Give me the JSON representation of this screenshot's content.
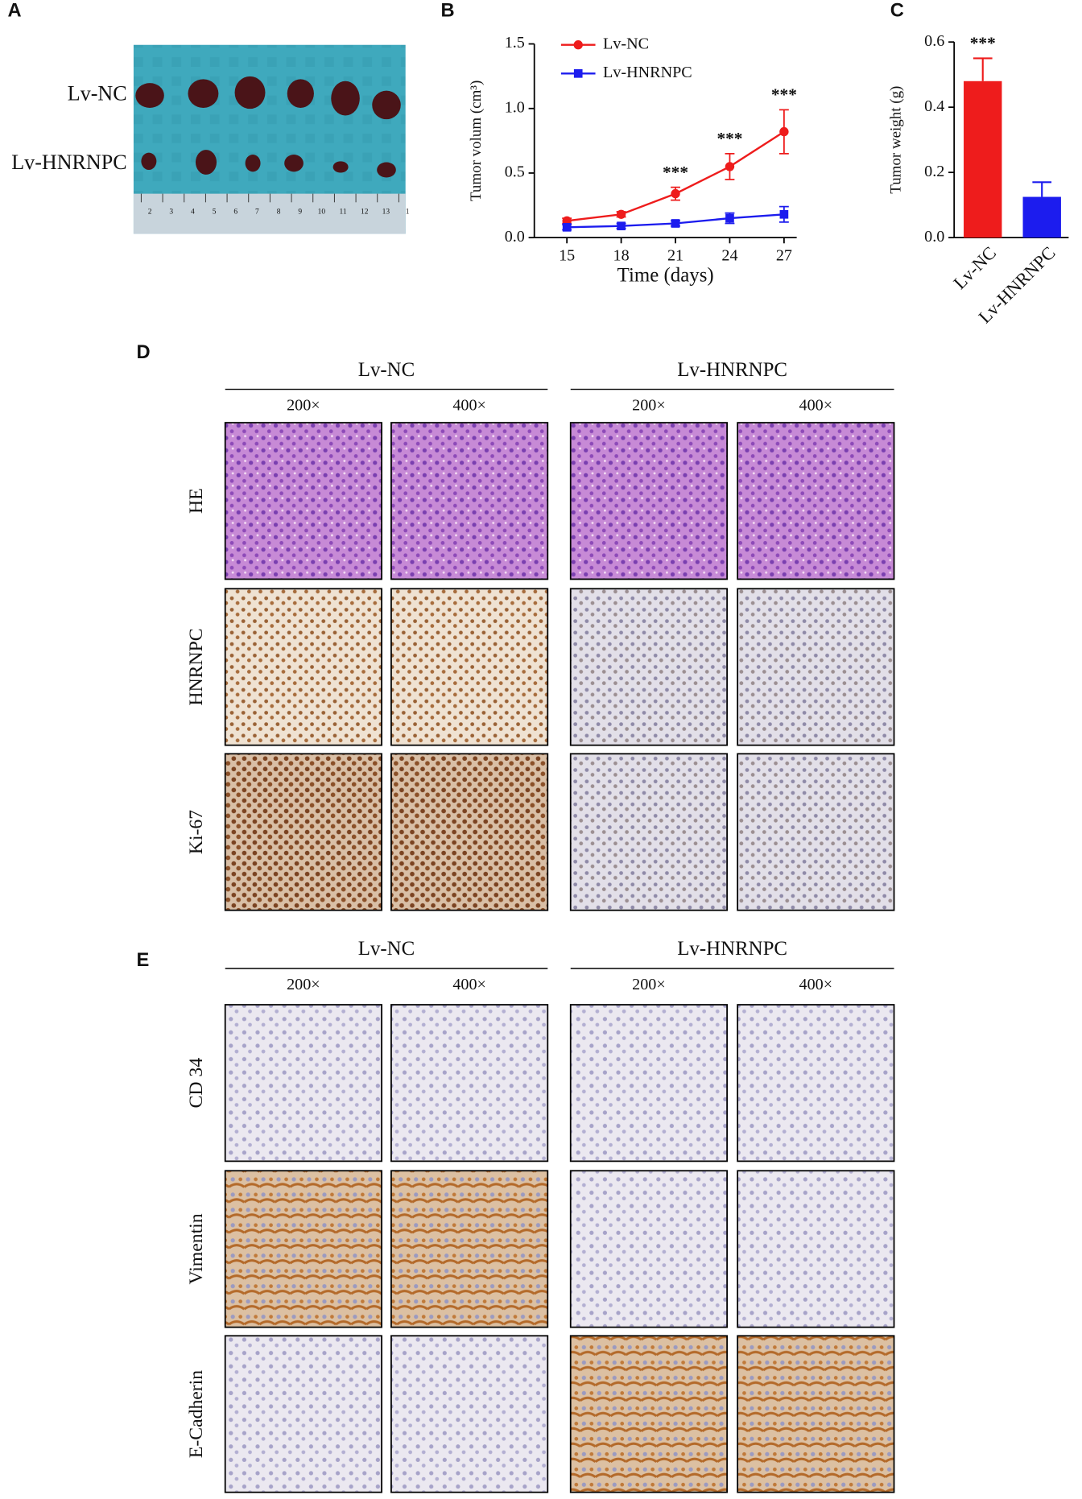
{
  "panel_labels": [
    "A",
    "B",
    "C",
    "D",
    "E"
  ],
  "photo": {
    "row_labels": [
      "Lv-NC",
      "Lv-HNRNPC"
    ],
    "ruler_labels": [
      "2",
      "3",
      "4",
      "5",
      "6",
      "7",
      "8",
      "9",
      "10",
      "11",
      "12",
      "13",
      "1"
    ]
  },
  "chart_data": [
    {
      "type": "line",
      "x": [
        15,
        18,
        21,
        24,
        27
      ],
      "xlim": [
        13.2,
        27.7
      ],
      "xticks": [
        15,
        18,
        21,
        24,
        27
      ],
      "ylim": [
        0,
        1.5
      ],
      "yticks": [
        {
          "value": 0,
          "label": "0.0"
        },
        {
          "value": 0.5,
          "label": "0.5"
        },
        {
          "value": 1,
          "label": "1.0"
        },
        {
          "value": 1.5,
          "label": "1.5"
        }
      ],
      "x_label": "Time (days)",
      "y_label": "Tumor volum (cm³)",
      "legend": "upper left",
      "series": [
        {
          "name": "Lv-NC",
          "color": "#ee1c1c",
          "marker": "circle",
          "values": [
            0.13,
            0.18,
            0.34,
            0.55,
            0.82
          ],
          "errors": [
            0.02,
            0.02,
            0.05,
            0.1,
            0.17
          ]
        },
        {
          "name": "Lv-HNRNPC",
          "color": "#1c1cee",
          "marker": "square",
          "values": [
            0.08,
            0.09,
            0.11,
            0.15,
            0.18
          ],
          "errors": [
            0.02,
            0.02,
            0.02,
            0.04,
            0.06
          ]
        }
      ],
      "annotations": [
        {
          "text": "***",
          "x": 21
        },
        {
          "text": "***",
          "x": 24
        },
        {
          "text": "***",
          "x": 27
        }
      ]
    },
    {
      "type": "bar",
      "categories": [
        "Lv-NC",
        "Lv-HNRNPC"
      ],
      "values": [
        0.48,
        0.125
      ],
      "errors": [
        0.07,
        0.045
      ],
      "colors": [
        "#ee1c1c",
        "#1c1cee"
      ],
      "ylim": [
        0,
        0.6
      ],
      "yticks": [
        {
          "value": 0,
          "label": "0.0"
        },
        {
          "value": 0.2,
          "label": "0.2"
        },
        {
          "value": 0.4,
          "label": "0.4"
        },
        {
          "value": 0.6,
          "label": "0.6"
        }
      ],
      "y_label": "Tumor weight (g)",
      "annotations": [
        {
          "text": "***",
          "x": "Lv-NC"
        }
      ]
    }
  ],
  "histology": [
    {
      "groups": [
        "Lv-NC",
        "Lv-HNRNPC"
      ],
      "magnifications": [
        "200×",
        "400×",
        "200×",
        "400×"
      ],
      "rows": [
        "HE",
        "HNRNPC",
        "Ki-67"
      ]
    },
    {
      "groups": [
        "Lv-NC",
        "Lv-HNRNPC"
      ],
      "magnifications": [
        "200×",
        "400×",
        "200×",
        "400×"
      ],
      "rows": [
        "CD 34",
        "Vimentin",
        "E-Cadherin"
      ]
    }
  ]
}
